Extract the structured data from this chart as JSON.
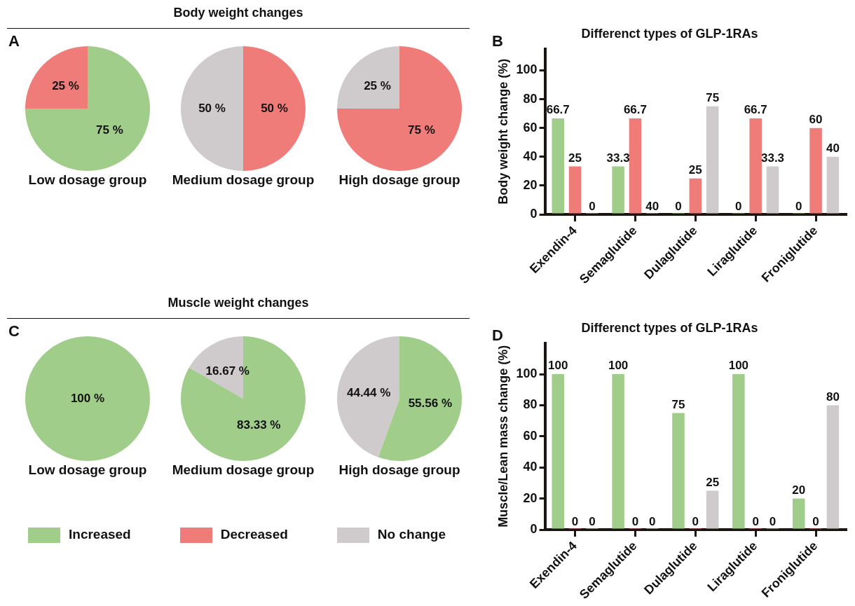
{
  "chart_data": [
    {
      "type": "other",
      "title": "Body weight changes",
      "annotations": [
        "A"
      ]
    },
    {
      "type": "pie",
      "title": "Low dosage group",
      "categories": [
        null,
        null,
        null
      ],
      "values": [
        75,
        25,
        0
      ],
      "colors": [
        "#a1cd8a",
        "#f07c7a",
        "#cfcacb"
      ],
      "value_labels": [
        "75 %",
        "25 %",
        null
      ]
    },
    {
      "type": "pie",
      "title": "Medium dosage group",
      "categories": [
        null,
        null,
        null
      ],
      "values": [
        0,
        50,
        50
      ],
      "colors": [
        "#a1cd8a",
        "#f07c7a",
        "#cfcacb"
      ],
      "value_labels": [
        null,
        "50 %",
        "50 %"
      ]
    },
    {
      "type": "pie",
      "title": "High dosage group",
      "categories": [
        null,
        null,
        null
      ],
      "values": [
        0,
        75,
        25
      ],
      "colors": [
        "#a1cd8a",
        "#f07c7a",
        "#cfcacb"
      ],
      "value_labels": [
        null,
        "75 %",
        "25 %"
      ]
    },
    {
      "type": "bar",
      "title": "Differenct types of GLP-1RAs",
      "ylabel": "Body weight change (%)",
      "annotations": [
        "B",
        {
          "text": "25",
          "x": "Exendin-4",
          "y": 33.3
        },
        {
          "text": "40",
          "x": "Semaglutide",
          "y": 0
        }
      ],
      "categories": [
        "Exendin-4",
        "Semaglutide",
        "Dulaglutide",
        "Liraglutide",
        "Froniglutide"
      ],
      "ylim": [
        0,
        115
      ],
      "yticks": [
        0,
        20,
        40,
        60,
        80,
        100
      ],
      "grid": false,
      "series": [
        {
          "color": "#a1cd8a",
          "values": [
            66.7,
            33.3,
            0,
            0,
            0
          ],
          "value_labels": [
            "66.7",
            "33.3",
            "0",
            "0",
            "0"
          ]
        },
        {
          "color": "#f07c7a",
          "values": [
            33.3,
            66.7,
            25,
            66.7,
            60
          ],
          "value_labels": [
            null,
            "66.7",
            "25",
            "66.7",
            "60"
          ]
        },
        {
          "color": "#cfcacb",
          "values": [
            0,
            0,
            75,
            33.3,
            40
          ],
          "value_labels": [
            "0",
            null,
            "75",
            "33.3",
            "40"
          ]
        }
      ]
    },
    {
      "type": "other",
      "title": "Muscle weight changes",
      "annotations": [
        "C"
      ]
    },
    {
      "type": "pie",
      "title": "Low dosage group",
      "categories": [
        null,
        null,
        null
      ],
      "values": [
        100,
        0,
        0
      ],
      "colors": [
        "#a1cd8a",
        "#f07c7a",
        "#cfcacb"
      ],
      "value_labels": [
        "100 %",
        null,
        null
      ]
    },
    {
      "type": "pie",
      "title": "Medium dosage group",
      "categories": [
        null,
        null,
        null
      ],
      "values": [
        83.33,
        0,
        16.67
      ],
      "colors": [
        "#a1cd8a",
        "#f07c7a",
        "#cfcacb"
      ],
      "value_labels": [
        "83.33 %",
        null,
        "16.67 %"
      ]
    },
    {
      "type": "pie",
      "title": "High dosage group",
      "categories": [
        null,
        null,
        null
      ],
      "values": [
        55.56,
        0,
        44.44
      ],
      "colors": [
        "#a1cd8a",
        "#f07c7a",
        "#cfcacb"
      ],
      "value_labels": [
        "55.56 %",
        null,
        "44.44 %"
      ]
    },
    {
      "type": "bar",
      "title": "Differenct types of GLP-1RAs",
      "ylabel": "Muscle/Lean mass change (%)",
      "annotations": [
        "D"
      ],
      "categories": [
        "Exendin-4",
        "Semaglutide",
        "Dulaglutide",
        "Liraglutide",
        "Froniglutide"
      ],
      "ylim": [
        0,
        120
      ],
      "yticks": [
        0,
        20,
        40,
        60,
        80,
        100
      ],
      "grid": false,
      "legend": "bottom",
      "series": [
        {
          "name": "Increased",
          "color": "#a1cd8a",
          "values": [
            100,
            100,
            75,
            100,
            20
          ],
          "value_labels": [
            "100",
            "100",
            "75",
            "100",
            "20"
          ]
        },
        {
          "name": "Decreased",
          "color": "#f07c7a",
          "values": [
            0,
            0,
            0,
            0,
            0
          ],
          "value_labels": [
            "0",
            "0",
            "0",
            "0",
            "0"
          ]
        },
        {
          "name": "No change",
          "color": "#cfcacb",
          "values": [
            0,
            0,
            25,
            0,
            80
          ],
          "value_labels": [
            "0",
            "0",
            "25",
            "0",
            "80"
          ]
        }
      ]
    }
  ]
}
